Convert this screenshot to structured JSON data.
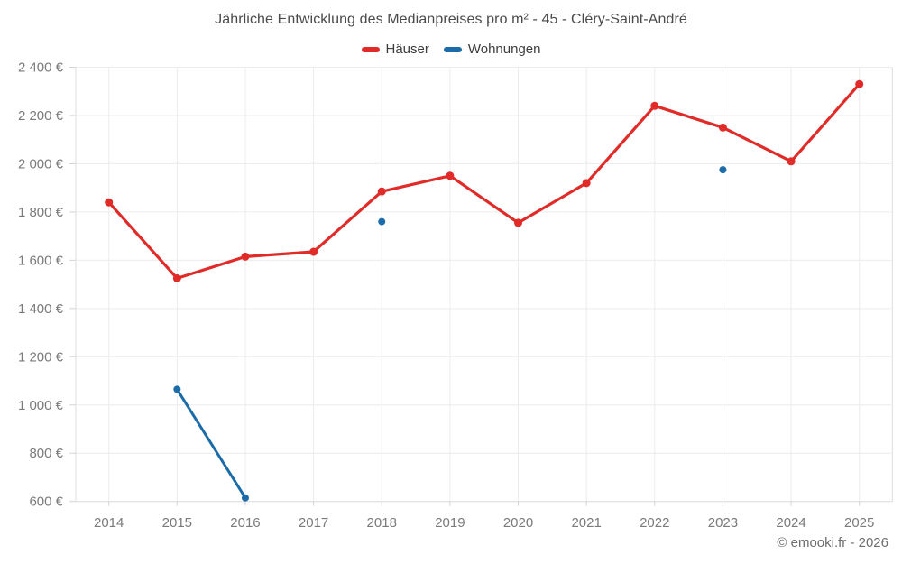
{
  "title": "Jährliche Entwicklung des Medianpreises pro m² - 45 - Cléry-Saint-André",
  "attribution": "© emooki.fr - 2026",
  "legend": {
    "items": [
      {
        "label": "Häuser",
        "color": "#e02b28"
      },
      {
        "label": "Wohnungen",
        "color": "#1b6ca8"
      }
    ]
  },
  "chart_data": {
    "type": "line",
    "x": [
      "2014",
      "2015",
      "2016",
      "2017",
      "2018",
      "2019",
      "2020",
      "2021",
      "2022",
      "2023",
      "2024",
      "2025"
    ],
    "series": [
      {
        "name": "Häuser",
        "color": "#e02b28",
        "values": [
          1840,
          1525,
          1615,
          1635,
          1885,
          1950,
          1755,
          1920,
          2240,
          2150,
          2010,
          2330
        ]
      },
      {
        "name": "Wohnungen",
        "color": "#1b6ca8",
        "values": [
          null,
          1065,
          615,
          null,
          1760,
          null,
          null,
          null,
          null,
          1975,
          null,
          null
        ]
      }
    ],
    "yticks": [
      {
        "value": 600,
        "label": "600 €"
      },
      {
        "value": 800,
        "label": "800 €"
      },
      {
        "value": 1000,
        "label": "1 000 €"
      },
      {
        "value": 1200,
        "label": "1 200 €"
      },
      {
        "value": 1400,
        "label": "1 400 €"
      },
      {
        "value": 1600,
        "label": "1 600 €"
      },
      {
        "value": 1800,
        "label": "1 800 €"
      },
      {
        "value": 2000,
        "label": "2 000 €"
      },
      {
        "value": 2200,
        "label": "2 200 €"
      },
      {
        "value": 2400,
        "label": "2 400 €"
      }
    ],
    "ylim": [
      600,
      2400
    ],
    "grid": true,
    "legend_position": "top",
    "ylabel": "",
    "xlabel": ""
  },
  "colors": {
    "grid": "#ececec",
    "axis_border": "#dedede",
    "tick": "#d4d4d4",
    "background": "#ffffff"
  }
}
